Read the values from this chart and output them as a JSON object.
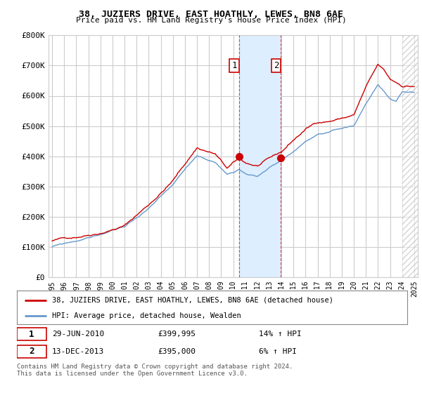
{
  "title": "38, JUZIERS DRIVE, EAST HOATHLY, LEWES, BN8 6AE",
  "subtitle": "Price paid vs. HM Land Registry's House Price Index (HPI)",
  "legend_line1": "38, JUZIERS DRIVE, EAST HOATHLY, LEWES, BN8 6AE (detached house)",
  "legend_line2": "HPI: Average price, detached house, Wealden",
  "annotation1_date": "29-JUN-2010",
  "annotation1_price": "£399,995",
  "annotation1_hpi": "14% ↑ HPI",
  "annotation2_date": "13-DEC-2013",
  "annotation2_price": "£395,000",
  "annotation2_hpi": "6% ↑ HPI",
  "footnote": "Contains HM Land Registry data © Crown copyright and database right 2024.\nThis data is licensed under the Open Government Licence v3.0.",
  "ylim": [
    0,
    800000
  ],
  "yticks": [
    0,
    100000,
    200000,
    300000,
    400000,
    500000,
    600000,
    700000,
    800000
  ],
  "ytick_labels": [
    "£0",
    "£100K",
    "£200K",
    "£300K",
    "£400K",
    "£500K",
    "£600K",
    "£700K",
    "£800K"
  ],
  "background_color": "#ffffff",
  "plot_bg_color": "#ffffff",
  "grid_color": "#cccccc",
  "hpi_color": "#6699cc",
  "price_color": "#cc0000",
  "sale1_x": 2010.496,
  "sale2_x": 2013.956,
  "sale1_y": 399995,
  "sale2_y": 395000,
  "band_color": "#ddeeff",
  "xlim_left": 1994.7,
  "xlim_right": 2025.3,
  "hatch_start": 2024.0
}
